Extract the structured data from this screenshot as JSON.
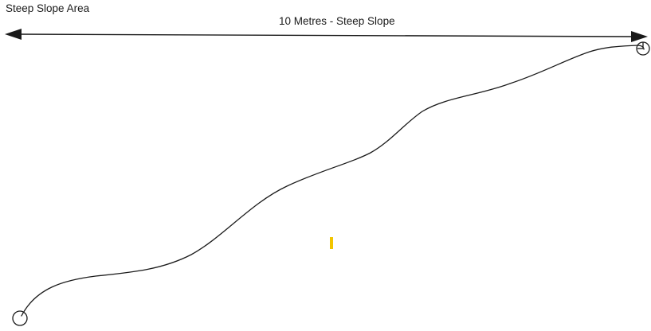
{
  "diagram": {
    "area_title": "Steep Slope Area",
    "span_label": "10 Metres - Steep Slope",
    "colors": {
      "line": "#1a1a1a",
      "marker": "#f2c500",
      "background": "#ffffff"
    },
    "icons": {
      "start_point": "circle-icon",
      "end_point": "circle-icon",
      "marker": "yellow-bar-icon"
    }
  }
}
